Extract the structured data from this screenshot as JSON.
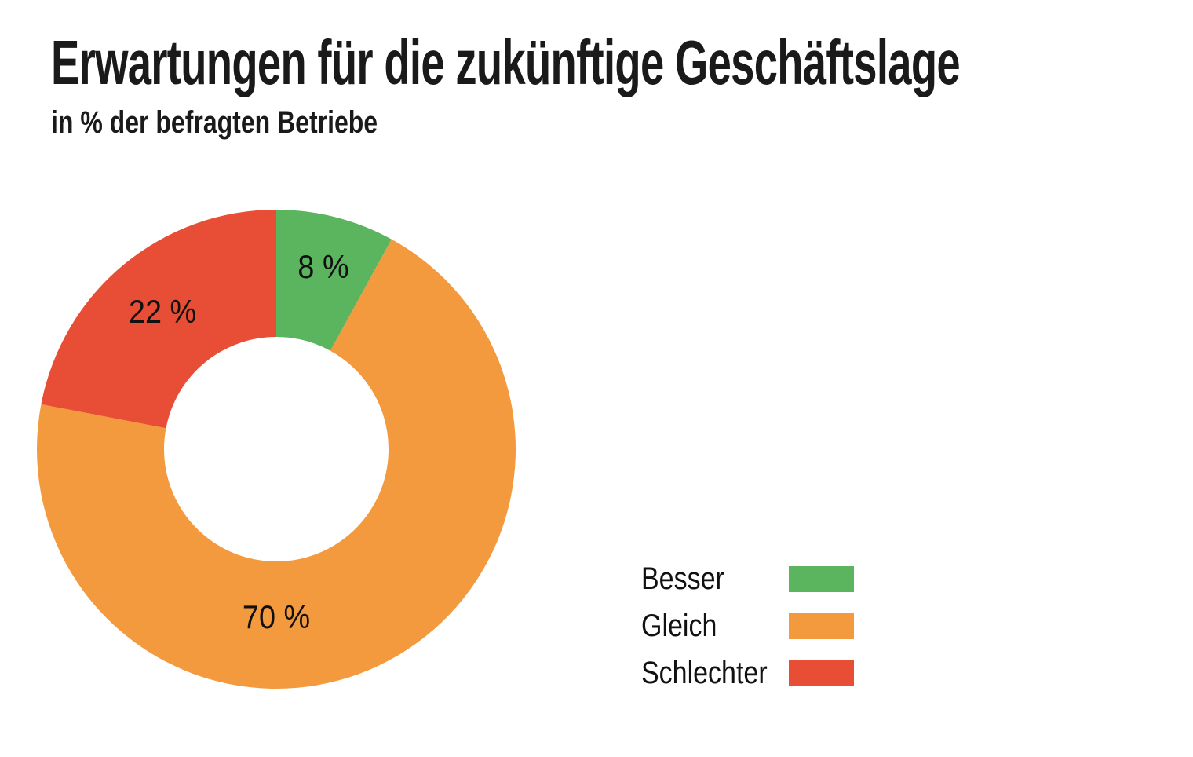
{
  "header": {
    "title": "Erwartungen für die zukünftige Geschäftslage",
    "subtitle": "in % der befragten Betriebe"
  },
  "chart_data": {
    "type": "pie",
    "subtype": "donut",
    "title": "Erwartungen für die zukünftige Geschäftslage",
    "subtitle": "in % der befragten Betriebe",
    "unit": "%",
    "categories": [
      "Besser",
      "Gleich",
      "Schlechter"
    ],
    "values": [
      8,
      70,
      22
    ],
    "legend_position": "right",
    "start_angle_deg_from_top": 0,
    "direction": "clockwise",
    "outer_radius": 305,
    "inner_radius": 143,
    "background_color": "#ffffff",
    "slices": [
      {
        "name": "besser",
        "legend_label": "Besser",
        "value": 8,
        "label": "8 %",
        "color": "#5bb55e",
        "label_radius": 240
      },
      {
        "name": "gleich",
        "legend_label": "Gleich",
        "value": 70,
        "label": "70 %",
        "color": "#f3993e",
        "label_angle": 180,
        "label_radius": 214
      },
      {
        "name": "schlechter",
        "legend_label": "Schlechter",
        "value": 22,
        "label": "22 %",
        "color": "#e84d35",
        "label_radius": 227
      }
    ]
  }
}
